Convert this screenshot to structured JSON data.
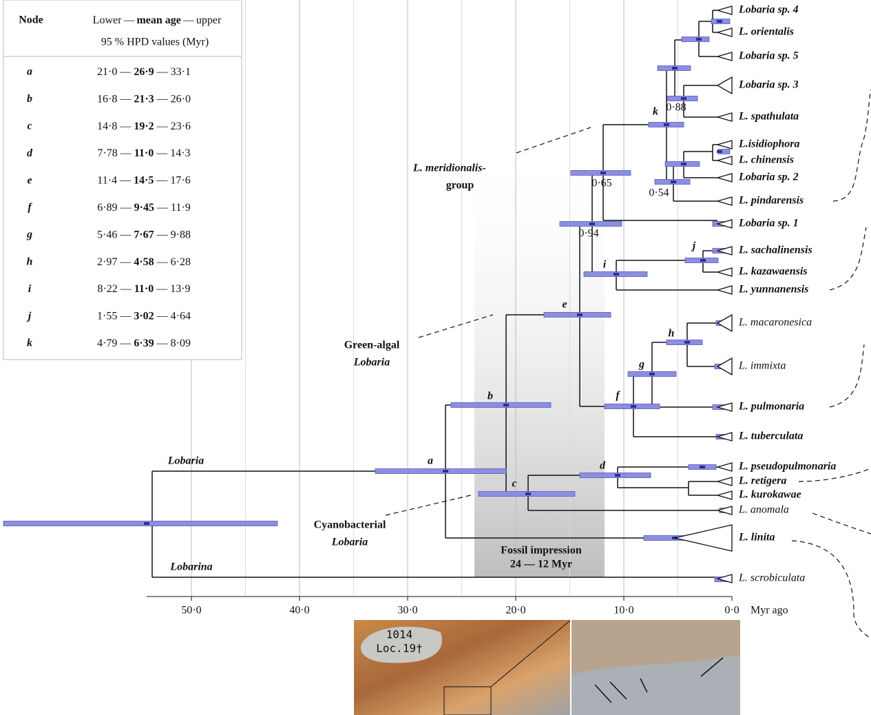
{
  "table": {
    "header": {
      "node": "Node",
      "lower": "Lower",
      "mean": "mean age",
      "upper": "upper",
      "units": "95 % HPD values (Myr)"
    },
    "separator": "—",
    "rows": [
      {
        "node": "a",
        "lower": "21·0",
        "mean": "26·9",
        "upper": "33·1"
      },
      {
        "node": "b",
        "lower": "16·8",
        "mean": "21·3",
        "upper": "26·0"
      },
      {
        "node": "c",
        "lower": "14·8",
        "mean": "19·2",
        "upper": "23·6"
      },
      {
        "node": "d",
        "lower": "7·78",
        "mean": "11·0",
        "upper": "14·3"
      },
      {
        "node": "e",
        "lower": "11·4",
        "mean": "14·5",
        "upper": "17·6"
      },
      {
        "node": "f",
        "lower": "6·89",
        "mean": "9·45",
        "upper": "11·9"
      },
      {
        "node": "g",
        "lower": "5·46",
        "mean": "7·67",
        "upper": "9·88"
      },
      {
        "node": "h",
        "lower": "2·97",
        "mean": "4·58",
        "upper": "6·28"
      },
      {
        "node": "i",
        "lower": "8·22",
        "mean": "11·0",
        "upper": "13·9"
      },
      {
        "node": "j",
        "lower": "1·55",
        "mean": "3·02",
        "upper": "4·64"
      },
      {
        "node": "k",
        "lower": "4·79",
        "mean": "6·39",
        "upper": "8·09"
      }
    ]
  },
  "tree": {
    "tips": [
      {
        "label": "Lobaria sp. 4",
        "color": "#5a9a1c"
      },
      {
        "label": "L. orientalis",
        "color": "#5a9a1c"
      },
      {
        "label": "Lobaria sp. 5",
        "color": "#5a9a1c"
      },
      {
        "label": "Lobaria sp. 3",
        "color": "#5a9a1c"
      },
      {
        "label": "L. spathulata",
        "color": "#5a9a1c"
      },
      {
        "label": "L.isidiophora",
        "color": "#5a9a1c"
      },
      {
        "label": "L. chinensis",
        "color": "#5a9a1c"
      },
      {
        "label": "Lobaria sp. 2",
        "color": "#5a9a1c"
      },
      {
        "label": "L. pindarensis",
        "color": "#5a9a1c"
      },
      {
        "label": "Lobaria sp. 1",
        "color": "#5a9a1c"
      },
      {
        "label": "L. sachalinensis",
        "color": "#5a9a1c"
      },
      {
        "label": "L. kazawaensis",
        "color": "#5a9a1c"
      },
      {
        "label": "L. yunnanensis",
        "color": "#5a9a1c"
      },
      {
        "label": "L. macaronesica",
        "color": "#111111"
      },
      {
        "label": "L. immixta",
        "color": "#111111"
      },
      {
        "label": "L. pulmonaria",
        "color": "#1f3fe0"
      },
      {
        "label": "L. tuberculata",
        "color": "#5a9a1c"
      },
      {
        "label": "L. pseudopulmonaria",
        "color": "#1f3fe0"
      },
      {
        "label": "L. retigera",
        "color": "#1f3fe0"
      },
      {
        "label": "L. kurokawae",
        "color": "#1f3fe0"
      },
      {
        "label": "L. anomala",
        "color": "#111111"
      },
      {
        "label": "L. linita",
        "color": "#1f3fe0"
      },
      {
        "label": "L. scrobiculata",
        "color": "#111111"
      }
    ],
    "node_labels": [
      "a",
      "b",
      "c",
      "d",
      "e",
      "f",
      "g",
      "h",
      "i",
      "j",
      "k"
    ],
    "support": [
      "0·88",
      "0·65",
      "0·54",
      "0·94"
    ]
  },
  "axis": {
    "ticks": [
      "50·0",
      "40·0",
      "30·0",
      "20·0",
      "10·0",
      "0·0"
    ],
    "unit": "Myr ago"
  },
  "annotations": {
    "meridionalis": [
      "L. meridionalis-",
      "group"
    ],
    "green": [
      "Green-algal",
      "Lobaria"
    ],
    "cyano": [
      "Cyanobacterial",
      "Lobaria"
    ],
    "lobaria": "Lobaria",
    "lobarina": "Lobarina",
    "fossil": [
      "Fossil impression",
      "24 — 12 Myr"
    ]
  },
  "photo": {
    "label": [
      "1014",
      "Loc.19†"
    ]
  }
}
